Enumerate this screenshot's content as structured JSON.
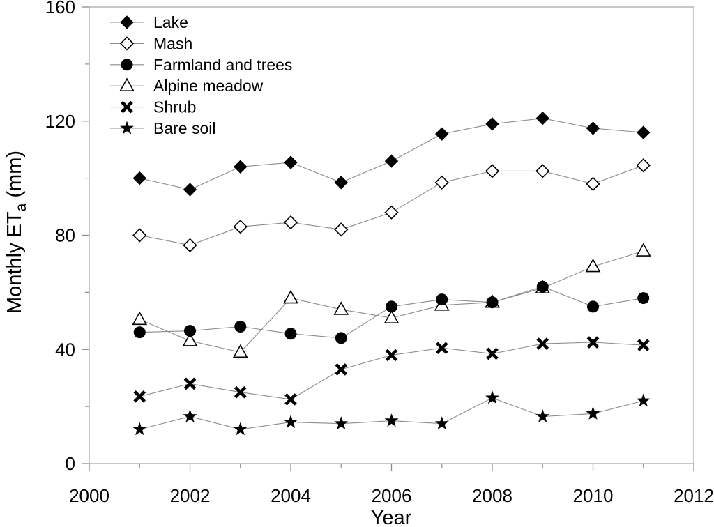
{
  "figure": {
    "background": "#ffffff",
    "frame_color": "#a9a9a9",
    "tick_color": "#8c8c8c",
    "line_color": "#8c8c8c",
    "marker_color": "#000000",
    "text_color": "#000000"
  },
  "chart_data": {
    "type": "line",
    "title": "",
    "xlabel": "Year",
    "ylabel": "Monthly ETa (mm)",
    "ylabel_parts": {
      "pre": "Monthly ET",
      "sub": "a",
      "post": " (mm)"
    },
    "xlim": [
      2000,
      2012
    ],
    "ylim": [
      0,
      160
    ],
    "x_major_ticks": [
      2000,
      2002,
      2004,
      2006,
      2008,
      2010,
      2012
    ],
    "x_minor_ticks": [
      2001,
      2003,
      2005,
      2007,
      2009,
      2011
    ],
    "y_major_ticks": [
      0,
      40,
      80,
      120,
      160
    ],
    "y_minor_ticks": [
      20,
      60,
      100,
      140
    ],
    "grid": "off",
    "x": [
      2001,
      2002,
      2003,
      2004,
      2005,
      2006,
      2007,
      2008,
      2009,
      2010,
      2011
    ],
    "series": [
      {
        "name": "Lake",
        "marker": "filled-diamond",
        "values": [
          100,
          96,
          104,
          105.5,
          98.5,
          106,
          115.5,
          119,
          121,
          117.5,
          116
        ]
      },
      {
        "name": "Mash",
        "marker": "open-diamond",
        "values": [
          80,
          76.5,
          83,
          84.5,
          82,
          88,
          98.5,
          102.5,
          102.5,
          98,
          104.5
        ]
      },
      {
        "name": "Farmland and trees",
        "marker": "filled-circle",
        "values": [
          46,
          46.5,
          48,
          45.5,
          44,
          55,
          57.5,
          56.5,
          62,
          55,
          58
        ]
      },
      {
        "name": "Alpine meadow",
        "marker": "open-triangle",
        "values": [
          50.5,
          43,
          39,
          58,
          54,
          51,
          55.5,
          56.5,
          61.5,
          69,
          74.5
        ]
      },
      {
        "name": "Shrub",
        "marker": "x-cross",
        "values": [
          23.5,
          28,
          25,
          22.5,
          33,
          38,
          40.5,
          38.5,
          42,
          42.5,
          41.5
        ]
      },
      {
        "name": "Bare soil",
        "marker": "filled-star",
        "values": [
          12,
          16.5,
          12,
          14.5,
          14,
          15,
          14,
          23,
          16.5,
          17.5,
          22
        ]
      }
    ],
    "draw_order": [
      "Lake",
      "Mash",
      "Alpine meadow",
      "Farmland and trees",
      "Shrub",
      "Bare soil"
    ],
    "legend": {
      "position": "top-left",
      "order": [
        "Lake",
        "Mash",
        "Farmland and trees",
        "Alpine meadow",
        "Shrub",
        "Bare soil"
      ]
    }
  }
}
